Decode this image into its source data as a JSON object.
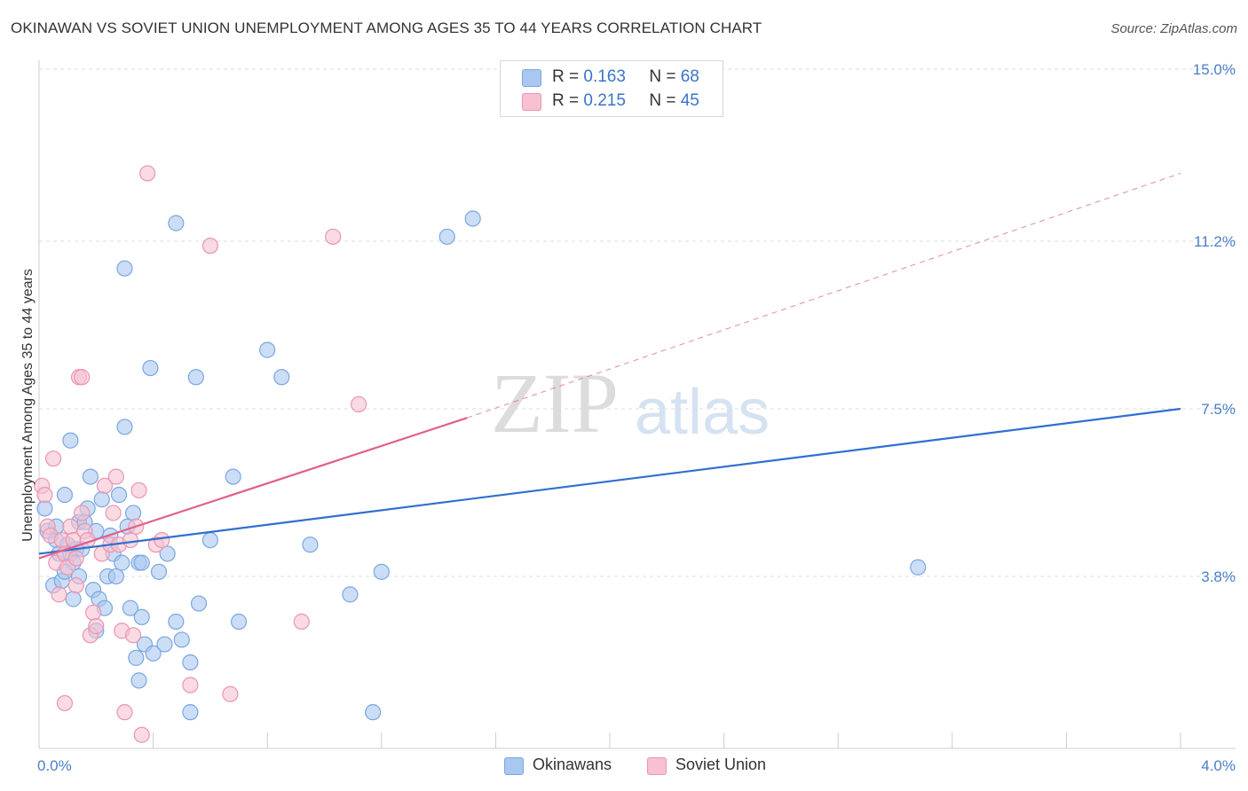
{
  "title": "OKINAWAN VS SOVIET UNION UNEMPLOYMENT AMONG AGES 35 TO 44 YEARS CORRELATION CHART",
  "source": "Source: ZipAtlas.com",
  "watermark": {
    "zip": "ZIP",
    "atlas": "atlas"
  },
  "colors": {
    "okinawans_fill": "#a9c8f0",
    "okinawans_stroke": "#7aa6e0",
    "okinawans_line": "#2f6fd0",
    "soviet_fill": "#f7c1d1",
    "soviet_stroke": "#ea94b1",
    "soviet_line": "#e0608a",
    "tick_label": "#4a7fc8",
    "grid": "#dddddd"
  },
  "legend": {
    "rows": [
      {
        "series": "Okinawans",
        "r_label": "R =",
        "r_value": "0.163",
        "n_label": "N =",
        "n_value": "68"
      },
      {
        "series": "Soviet Union",
        "r_label": "R =",
        "r_value": "0.215",
        "n_label": "N =",
        "n_value": "45"
      }
    ]
  },
  "bottom_legend": [
    {
      "label": "Okinawans"
    },
    {
      "label": "Soviet Union"
    }
  ],
  "chart_data": {
    "type": "scatter",
    "title": "OKINAWAN VS SOVIET UNION UNEMPLOYMENT AMONG AGES 35 TO 44 YEARS CORRELATION CHART",
    "xlabel": "",
    "ylabel": "Unemployment Among Ages 35 to 44 years",
    "xlim": [
      0.0,
      4.0
    ],
    "ylim": [
      0.0,
      15.0
    ],
    "x_tick_labels": [
      {
        "value": 0.0,
        "label": "0.0%"
      },
      {
        "value": 4.0,
        "label": "4.0%"
      }
    ],
    "y_tick_labels": [
      {
        "value": 3.8,
        "label": "3.8%"
      },
      {
        "value": 7.5,
        "label": "7.5%"
      },
      {
        "value": 11.2,
        "label": "11.2%"
      },
      {
        "value": 15.0,
        "label": "15.0%"
      }
    ],
    "series": [
      {
        "name": "Okinawans",
        "r": 0.163,
        "n": 68,
        "trend": {
          "x0": 0.0,
          "y0": 4.3,
          "x1": 4.0,
          "y1": 7.5,
          "dashed_extension": false
        },
        "points": [
          [
            0.02,
            5.3
          ],
          [
            0.03,
            4.8
          ],
          [
            0.05,
            3.6
          ],
          [
            0.06,
            4.6
          ],
          [
            0.07,
            4.3
          ],
          [
            0.08,
            3.7
          ],
          [
            0.09,
            5.6
          ],
          [
            0.1,
            4.5
          ],
          [
            0.11,
            4.3
          ],
          [
            0.12,
            3.3
          ],
          [
            0.13,
            4.4
          ],
          [
            0.14,
            5.0
          ],
          [
            0.11,
            6.8
          ],
          [
            0.14,
            3.8
          ],
          [
            0.12,
            4.1
          ],
          [
            0.15,
            4.4
          ],
          [
            0.16,
            5.0
          ],
          [
            0.17,
            5.3
          ],
          [
            0.18,
            6.0
          ],
          [
            0.19,
            3.5
          ],
          [
            0.2,
            2.6
          ],
          [
            0.21,
            3.3
          ],
          [
            0.22,
            5.5
          ],
          [
            0.23,
            3.1
          ],
          [
            0.24,
            3.8
          ],
          [
            0.25,
            4.7
          ],
          [
            0.26,
            4.3
          ],
          [
            0.27,
            3.8
          ],
          [
            0.28,
            5.6
          ],
          [
            0.29,
            4.1
          ],
          [
            0.3,
            7.1
          ],
          [
            0.31,
            4.9
          ],
          [
            0.32,
            3.1
          ],
          [
            0.33,
            5.2
          ],
          [
            0.34,
            2.0
          ],
          [
            0.35,
            4.1
          ],
          [
            0.35,
            1.5
          ],
          [
            0.36,
            2.9
          ],
          [
            0.37,
            2.3
          ],
          [
            0.36,
            4.1
          ],
          [
            0.3,
            10.6
          ],
          [
            0.39,
            8.4
          ],
          [
            0.4,
            2.1
          ],
          [
            0.42,
            3.9
          ],
          [
            0.44,
            2.3
          ],
          [
            0.45,
            4.3
          ],
          [
            0.48,
            2.8
          ],
          [
            0.48,
            11.6
          ],
          [
            0.5,
            2.4
          ],
          [
            0.53,
            1.9
          ],
          [
            0.55,
            8.2
          ],
          [
            0.56,
            3.2
          ],
          [
            0.6,
            4.6
          ],
          [
            0.68,
            6.0
          ],
          [
            0.7,
            2.8
          ],
          [
            0.8,
            8.8
          ],
          [
            0.85,
            8.2
          ],
          [
            0.95,
            4.5
          ],
          [
            1.09,
            3.4
          ],
          [
            1.17,
            0.8
          ],
          [
            1.2,
            3.9
          ],
          [
            1.43,
            11.3
          ],
          [
            1.52,
            11.7
          ],
          [
            3.08,
            4.0
          ],
          [
            0.06,
            4.9
          ],
          [
            0.09,
            3.9
          ],
          [
            0.2,
            4.8
          ],
          [
            0.53,
            0.8
          ]
        ]
      },
      {
        "name": "Soviet Union",
        "r": 0.215,
        "n": 45,
        "trend": {
          "x0": 0.0,
          "y0": 4.2,
          "x1": 1.5,
          "y1": 7.3,
          "dashed_extension": true,
          "dash_x1": 4.0,
          "dash_y1": 12.7
        },
        "points": [
          [
            0.01,
            5.8
          ],
          [
            0.02,
            5.6
          ],
          [
            0.03,
            4.9
          ],
          [
            0.04,
            4.7
          ],
          [
            0.05,
            6.4
          ],
          [
            0.06,
            4.1
          ],
          [
            0.07,
            3.4
          ],
          [
            0.08,
            4.6
          ],
          [
            0.09,
            4.3
          ],
          [
            0.09,
            1.0
          ],
          [
            0.1,
            4.0
          ],
          [
            0.11,
            4.9
          ],
          [
            0.12,
            4.6
          ],
          [
            0.13,
            4.2
          ],
          [
            0.13,
            3.6
          ],
          [
            0.14,
            8.2
          ],
          [
            0.15,
            8.2
          ],
          [
            0.15,
            5.2
          ],
          [
            0.16,
            4.8
          ],
          [
            0.17,
            4.6
          ],
          [
            0.18,
            2.5
          ],
          [
            0.19,
            3.0
          ],
          [
            0.2,
            2.7
          ],
          [
            0.22,
            4.3
          ],
          [
            0.23,
            5.8
          ],
          [
            0.25,
            4.5
          ],
          [
            0.26,
            5.2
          ],
          [
            0.27,
            6.0
          ],
          [
            0.28,
            4.5
          ],
          [
            0.29,
            2.6
          ],
          [
            0.3,
            0.8
          ],
          [
            0.32,
            4.6
          ],
          [
            0.33,
            2.5
          ],
          [
            0.34,
            4.9
          ],
          [
            0.36,
            0.3
          ],
          [
            0.35,
            5.7
          ],
          [
            0.38,
            12.7
          ],
          [
            0.41,
            4.5
          ],
          [
            0.43,
            4.6
          ],
          [
            0.53,
            1.4
          ],
          [
            0.6,
            11.1
          ],
          [
            0.67,
            1.2
          ],
          [
            0.92,
            2.8
          ],
          [
            1.03,
            11.3
          ],
          [
            1.12,
            7.6
          ]
        ]
      }
    ]
  }
}
